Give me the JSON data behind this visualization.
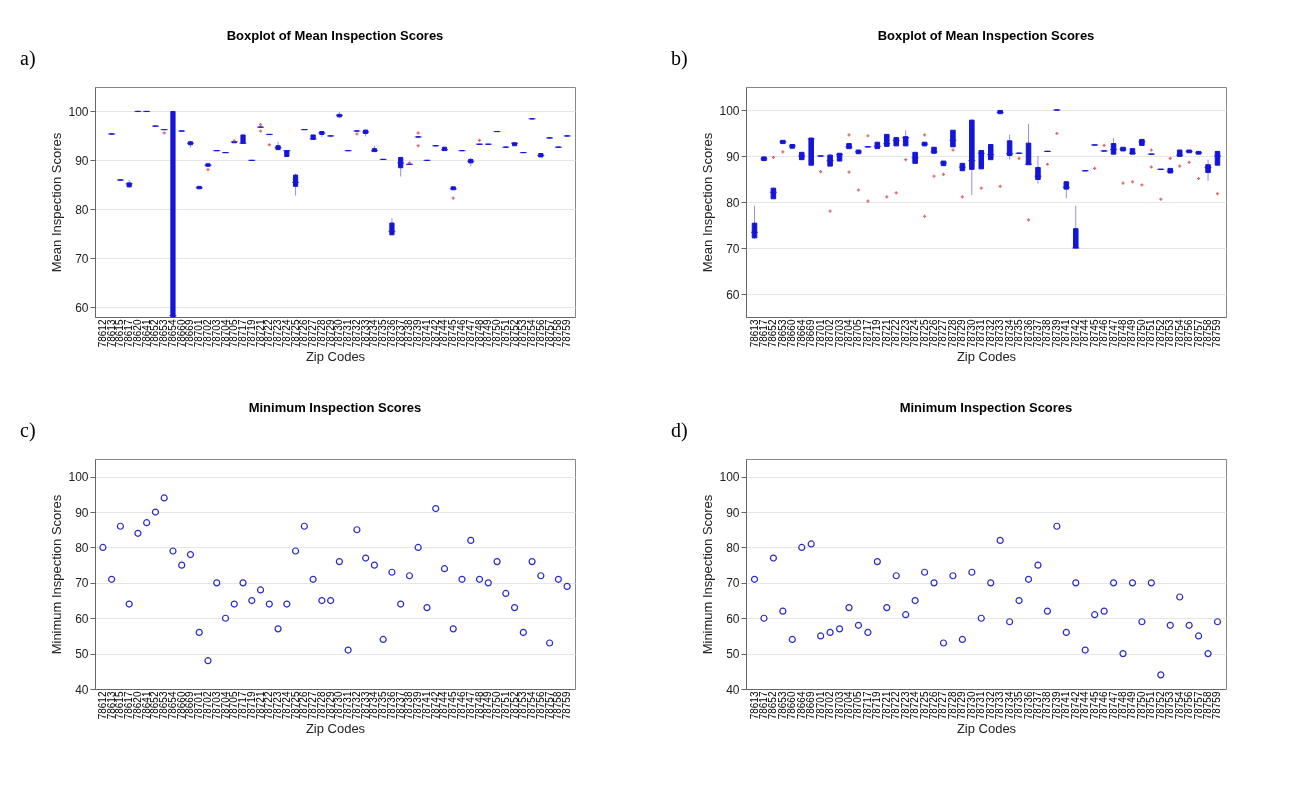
{
  "chart_data": [
    {
      "type": "box",
      "title": "Boxplot of Mean Inspection Scores",
      "xlabel": "Zip Codes",
      "ylabel": "Mean Inspection Scores",
      "annotations": [
        "a)"
      ],
      "grid": "y",
      "ylim": [
        58,
        105
      ],
      "yticks": [
        60,
        70,
        80,
        90,
        100
      ],
      "categories": [
        "78612",
        "78613",
        "78615",
        "78617",
        "78620",
        "78641",
        "78652",
        "78653",
        "78654",
        "78660",
        "78669",
        "78701",
        "78702",
        "78703",
        "78704",
        "78705",
        "78717",
        "78719",
        "78721",
        "78722",
        "78723",
        "78724",
        "78725",
        "78726",
        "78727",
        "78728",
        "78729",
        "78730",
        "78731",
        "78732",
        "78733",
        "78734",
        "78735",
        "78736",
        "78737",
        "78738",
        "78739",
        "78741",
        "78742",
        "78744",
        "78745",
        "78746",
        "78747",
        "78748",
        "78749",
        "78750",
        "78751",
        "78752",
        "78753",
        "78754",
        "78756",
        "78757",
        "78758",
        "78759"
      ],
      "series": [
        {
          "color": "#1515d8",
          "boxes": [
            null,
            {
              "low": 95.4,
              "q1": 95.4,
              "median": 95.4,
              "q3": 95.4,
              "high": 95.4
            },
            {
              "low": 86,
              "q1": 86,
              "median": 86,
              "q3": 86,
              "high": 86
            },
            {
              "low": 84.4,
              "q1": 84.6,
              "median": 85.2,
              "q3": 85.4,
              "high": 86
            },
            {
              "low": 100,
              "q1": 100,
              "median": 100,
              "q3": 100,
              "high": 100
            },
            {
              "low": 100,
              "q1": 100,
              "median": 100,
              "q3": 100,
              "high": 100
            },
            {
              "low": 97,
              "q1": 97,
              "median": 97,
              "q3": 97,
              "high": 97
            },
            {
              "low": 96.3,
              "q1": 96.3,
              "median": 96.3,
              "q3": 96.3,
              "high": 96.3,
              "outliers": [
                95.6
              ]
            },
            {
              "low": 58,
              "q1": 58,
              "median": 58.3,
              "q3": 100,
              "high": 100
            },
            {
              "low": 96,
              "q1": 96,
              "median": 96,
              "q3": 96,
              "high": 96
            },
            {
              "low": 92.6,
              "q1": 93.2,
              "median": 93.5,
              "q3": 93.8,
              "high": 94
            },
            {
              "low": 84.2,
              "q1": 84.2,
              "median": 84.4,
              "q3": 84.7,
              "high": 84.7
            },
            {
              "low": 88.8,
              "q1": 88.8,
              "median": 89,
              "q3": 89.3,
              "high": 89.5,
              "outliers": [
                88.1
              ]
            },
            {
              "low": 92,
              "q1": 92,
              "median": 92,
              "q3": 92,
              "high": 92
            },
            {
              "low": 91.6,
              "q1": 91.6,
              "median": 91.6,
              "q3": 91.6,
              "high": 91.6
            },
            {
              "low": 93.6,
              "q1": 93.6,
              "median": 93.8,
              "q3": 93.8,
              "high": 93.8,
              "outliers": [
                94
              ]
            },
            {
              "low": 93.5,
              "q1": 93.5,
              "median": 93.5,
              "q3": 95.2,
              "high": 95.2
            },
            {
              "low": 90,
              "q1": 90,
              "median": 90,
              "q3": 90,
              "high": 90
            },
            {
              "low": 96.8,
              "q1": 96.8,
              "median": 96.8,
              "q3": 96.8,
              "high": 96.8,
              "outliers": [
                97.3,
                96
              ]
            },
            {
              "low": 95.3,
              "q1": 95.3,
              "median": 95.3,
              "q3": 95.3,
              "high": 95.3,
              "outliers": [
                93.2
              ]
            },
            {
              "low": 92.2,
              "q1": 92.2,
              "median": 92.6,
              "q3": 93,
              "high": 93.8
            },
            {
              "low": 90.8,
              "q1": 90.8,
              "median": 92,
              "q3": 92,
              "high": 92
            },
            {
              "low": 82.8,
              "q1": 84.7,
              "median": 85.5,
              "q3": 87,
              "high": 87.3
            },
            {
              "low": 96.3,
              "q1": 96.3,
              "median": 96.3,
              "q3": 96.3,
              "high": 96.3
            },
            {
              "low": 94.3,
              "q1": 94.3,
              "median": 94.4,
              "q3": 95.2,
              "high": 95.2
            },
            {
              "low": 94.8,
              "q1": 95.3,
              "median": 95.6,
              "q3": 95.9,
              "high": 95.9
            },
            {
              "low": 95,
              "q1": 95,
              "median": 95,
              "q3": 95,
              "high": 95
            },
            {
              "low": 98.6,
              "q1": 98.9,
              "median": 99.2,
              "q3": 99.4,
              "high": 99.9
            },
            {
              "low": 92,
              "q1": 92,
              "median": 92,
              "q3": 92,
              "high": 92
            },
            {
              "low": 96,
              "q1": 96,
              "median": 96,
              "q3": 96,
              "high": 96,
              "outliers": [
                95.4
              ]
            },
            {
              "low": 94.9,
              "q1": 95.5,
              "median": 95.8,
              "q3": 96.2,
              "high": 96.2
            },
            {
              "low": 91.8,
              "q1": 91.8,
              "median": 92,
              "q3": 92.4,
              "high": 93
            },
            {
              "low": 90.2,
              "q1": 90.2,
              "median": 90.2,
              "q3": 90.2,
              "high": 90.2
            },
            {
              "low": 74.8,
              "q1": 74.8,
              "median": 75.5,
              "q3": 77.2,
              "high": 78.2
            },
            {
              "low": 86.7,
              "q1": 88.5,
              "median": 89.5,
              "q3": 90.6,
              "high": 90.6
            },
            {
              "low": 89.2,
              "q1": 89.2,
              "median": 89.2,
              "q3": 89.2,
              "high": 89.2,
              "outliers": [
                89.5
              ]
            },
            {
              "low": 94.8,
              "q1": 94.8,
              "median": 94.8,
              "q3": 94.8,
              "high": 94.8,
              "outliers": [
                95.6,
                93
              ]
            },
            {
              "low": 90,
              "q1": 90,
              "median": 90,
              "q3": 90,
              "high": 90
            },
            {
              "low": 93,
              "q1": 93,
              "median": 93,
              "q3": 93,
              "high": 93
            },
            {
              "low": 92,
              "q1": 92,
              "median": 92.2,
              "q3": 92.7,
              "high": 92.7
            },
            {
              "low": 84,
              "q1": 84,
              "median": 84.2,
              "q3": 84.6,
              "high": 84.6,
              "outliers": [
                82.3
              ]
            },
            {
              "low": 92,
              "q1": 92,
              "median": 92,
              "q3": 92,
              "high": 92
            },
            {
              "low": 88.8,
              "q1": 89.5,
              "median": 89.8,
              "q3": 90.2,
              "high": 90.6
            },
            {
              "low": 93.3,
              "q1": 93.3,
              "median": 93.3,
              "q3": 93.3,
              "high": 93.3,
              "outliers": [
                94.1
              ]
            },
            {
              "low": 93.3,
              "q1": 93.3,
              "median": 93.3,
              "q3": 93.3,
              "high": 93.3
            },
            {
              "low": 95.9,
              "q1": 95.9,
              "median": 95.9,
              "q3": 95.9,
              "high": 95.9
            },
            {
              "low": 92.7,
              "q1": 92.7,
              "median": 92.7,
              "q3": 92.7,
              "high": 92.7
            },
            {
              "low": 93,
              "q1": 93,
              "median": 93.5,
              "q3": 93.6,
              "high": 93.6
            },
            {
              "low": 91.6,
              "q1": 91.6,
              "median": 91.6,
              "q3": 91.6,
              "high": 91.6
            },
            {
              "low": 98.5,
              "q1": 98.5,
              "median": 98.5,
              "q3": 98.5,
              "high": 98.5
            },
            {
              "low": 90.7,
              "q1": 90.7,
              "median": 91,
              "q3": 91.4,
              "high": 91.4
            },
            {
              "low": 94.6,
              "q1": 94.6,
              "median": 94.6,
              "q3": 94.6,
              "high": 94.6
            },
            {
              "low": 92.7,
              "q1": 92.7,
              "median": 92.7,
              "q3": 92.7,
              "high": 92.7
            },
            {
              "low": 95,
              "q1": 95,
              "median": 95,
              "q3": 95,
              "high": 95
            }
          ]
        }
      ]
    },
    {
      "type": "box",
      "title": "Boxplot of Mean Inspection Scores",
      "xlabel": "Zip Codes",
      "ylabel": "Mean Inspection Scores",
      "annotations": [
        "b)"
      ],
      "grid": "y",
      "ylim": [
        55,
        105
      ],
      "yticks": [
        60,
        70,
        80,
        90,
        100
      ],
      "categories": [
        "78613",
        "78617",
        "78652",
        "78653",
        "78660",
        "78664",
        "78669",
        "78701",
        "78702",
        "78703",
        "78704",
        "78705",
        "78717",
        "78719",
        "78721",
        "78722",
        "78723",
        "78724",
        "78725",
        "78726",
        "78727",
        "78728",
        "78729",
        "78730",
        "78731",
        "78732",
        "78733",
        "78734",
        "78735",
        "78736",
        "78737",
        "78738",
        "78739",
        "78741",
        "78742",
        "78744",
        "78745",
        "78746",
        "78747",
        "78748",
        "78749",
        "78750",
        "78751",
        "78752",
        "78753",
        "78754",
        "78756",
        "78757",
        "78758",
        "78759"
      ],
      "series": [
        {
          "color": "#1515d8",
          "boxes": [
            {
              "low": 72,
              "q1": 72.2,
              "median": 73.4,
              "q3": 75.4,
              "high": 79.2
            },
            {
              "low": 89,
              "q1": 89,
              "median": 89.4,
              "q3": 89.8,
              "high": 89.8
            },
            {
              "low": 80.7,
              "q1": 80.7,
              "median": 82.1,
              "q3": 83,
              "high": 83.2,
              "outliers": [
                89.7
              ]
            },
            {
              "low": 92.7,
              "q1": 92.7,
              "median": 93.1,
              "q3": 93.4,
              "high": 93.4,
              "outliers": [
                90.9
              ]
            },
            {
              "low": 91.7,
              "q1": 91.7,
              "median": 92.2,
              "q3": 92.5,
              "high": 92.5
            },
            {
              "low": 89.2,
              "q1": 89.2,
              "median": 90,
              "q3": 90.8,
              "high": 90.8
            },
            {
              "low": 88,
              "q1": 88,
              "median": 93.7,
              "q3": 93.9,
              "high": 93.9
            },
            {
              "low": 90,
              "q1": 90,
              "median": 90,
              "q3": 90,
              "high": 90,
              "outliers": [
                86.6
              ]
            },
            {
              "low": 87.8,
              "q1": 87.8,
              "median": 89,
              "q3": 90.2,
              "high": 90.5,
              "outliers": [
                78
              ]
            },
            {
              "low": 88.9,
              "q1": 88.9,
              "median": 90.3,
              "q3": 90.6,
              "high": 90.6
            },
            {
              "low": 91.6,
              "q1": 91.6,
              "median": 92,
              "q3": 92.7,
              "high": 92.7,
              "outliers": [
                94.6,
                86.5
              ]
            },
            {
              "low": 90.5,
              "q1": 90.5,
              "median": 90.9,
              "q3": 91.3,
              "high": 91.3,
              "outliers": [
                82.6
              ]
            },
            {
              "low": 92,
              "q1": 92,
              "median": 92,
              "q3": 92,
              "high": 92,
              "outliers": [
                94.4,
                80.2
              ]
            },
            {
              "low": 91.6,
              "q1": 91.6,
              "median": 92.1,
              "q3": 93,
              "high": 93
            },
            {
              "low": 92.1,
              "q1": 92.1,
              "median": 92.7,
              "q3": 94.7,
              "high": 94.7,
              "outliers": [
                81.1
              ]
            },
            {
              "low": 92.2,
              "q1": 92.2,
              "median": 93.4,
              "q3": 94,
              "high": 94,
              "outliers": [
                82
              ]
            },
            {
              "low": 92.2,
              "q1": 92.2,
              "median": 94,
              "q3": 94.2,
              "high": 95.6,
              "outliers": [
                89.2
              ]
            },
            {
              "low": 88.4,
              "q1": 88.4,
              "median": 89.6,
              "q3": 90.8,
              "high": 90.8
            },
            {
              "low": 92.2,
              "q1": 92.2,
              "median": 92.6,
              "q3": 93,
              "high": 93,
              "outliers": [
                94.6,
                76.9
              ]
            },
            {
              "low": 90.6,
              "q1": 90.6,
              "median": 90.9,
              "q3": 91.9,
              "high": 91.9,
              "outliers": [
                85.6
              ]
            },
            {
              "low": 87.9,
              "q1": 87.9,
              "median": 88.5,
              "q3": 88.9,
              "high": 88.9,
              "outliers": [
                86
              ]
            },
            {
              "low": 92,
              "q1": 92,
              "median": 93.4,
              "q3": 95.6,
              "high": 95.6,
              "outliers": [
                91.3
              ]
            },
            {
              "low": 86.8,
              "q1": 86.8,
              "median": 87.6,
              "q3": 88.4,
              "high": 88.4,
              "outliers": [
                81.1
              ]
            },
            {
              "low": 81.5,
              "q1": 87.1,
              "median": 89,
              "q3": 97.8,
              "high": 97.8
            },
            {
              "low": 87.2,
              "q1": 87.2,
              "median": 90.6,
              "q3": 91.2,
              "high": 91.2,
              "outliers": [
                83
              ]
            },
            {
              "low": 89.2,
              "q1": 89.2,
              "median": 90.3,
              "q3": 92.5,
              "high": 92.5
            },
            {
              "low": 99.2,
              "q1": 99.2,
              "median": 99.5,
              "q3": 99.9,
              "high": 99.9,
              "outliers": [
                83.4
              ]
            },
            {
              "low": 89.2,
              "q1": 90.1,
              "median": 90.5,
              "q3": 93.3,
              "high": 94.6
            },
            {
              "low": 90.6,
              "q1": 90.6,
              "median": 90.6,
              "q3": 90.6,
              "high": 90.6,
              "outliers": [
                89.5
              ]
            },
            {
              "low": 88.1,
              "q1": 88.1,
              "median": 88.2,
              "q3": 92.8,
              "high": 97,
              "outliers": [
                76.1
              ]
            },
            {
              "low": 84,
              "q1": 84.9,
              "median": 85.6,
              "q3": 87.5,
              "high": 90
            },
            {
              "low": 91,
              "q1": 91,
              "median": 91,
              "q3": 91,
              "high": 91,
              "outliers": [
                88.2
              ]
            },
            {
              "low": 100,
              "q1": 100,
              "median": 100,
              "q3": 100,
              "high": 100,
              "outliers": [
                94.9
              ]
            },
            {
              "low": 80.8,
              "q1": 82.8,
              "median": 83.2,
              "q3": 84.4,
              "high": 84.4
            },
            {
              "low": 70,
              "q1": 70,
              "median": 70,
              "q3": 74.2,
              "high": 79.2
            },
            {
              "low": 86.8,
              "q1": 86.8,
              "median": 86.8,
              "q3": 86.8,
              "high": 86.8
            },
            {
              "low": 92.4,
              "q1": 92.4,
              "median": 92.4,
              "q3": 92.4,
              "high": 92.4,
              "outliers": [
                87.3
              ]
            },
            {
              "low": 91.1,
              "q1": 91.1,
              "median": 91.1,
              "q3": 91.1,
              "high": 91.1,
              "outliers": [
                92.3
              ]
            },
            {
              "low": 90.4,
              "q1": 90.4,
              "median": 91.4,
              "q3": 92.7,
              "high": 93.9
            },
            {
              "low": 91.1,
              "q1": 91.1,
              "median": 91.5,
              "q3": 91.9,
              "high": 91.9,
              "outliers": [
                84.1
              ]
            },
            {
              "low": 90.4,
              "q1": 90.4,
              "median": 90.6,
              "q3": 91.6,
              "high": 91.6,
              "outliers": [
                84.4
              ]
            },
            {
              "low": 92.3,
              "q1": 92.3,
              "median": 93.1,
              "q3": 93.6,
              "high": 93.6,
              "outliers": [
                83.7
              ]
            },
            {
              "low": 90.4,
              "q1": 90.4,
              "median": 90.4,
              "q3": 90.4,
              "high": 90.4,
              "outliers": [
                91.3,
                87.6
              ]
            },
            {
              "low": 87.1,
              "q1": 87.1,
              "median": 87.1,
              "q3": 87.1,
              "high": 87.1,
              "outliers": [
                80.6
              ]
            },
            {
              "low": 86.3,
              "q1": 86.3,
              "median": 86.7,
              "q3": 87.3,
              "high": 87.3,
              "outliers": [
                89.5
              ]
            },
            {
              "low": 89.9,
              "q1": 89.9,
              "median": 90.2,
              "q3": 91.3,
              "high": 91.3,
              "outliers": [
                87.8
              ]
            },
            {
              "low": 90.7,
              "q1": 90.7,
              "median": 91,
              "q3": 91.3,
              "high": 91.3,
              "outliers": [
                88.6
              ]
            },
            {
              "low": 90.4,
              "q1": 90.4,
              "median": 90.7,
              "q3": 91,
              "high": 91,
              "outliers": [
                85.1
              ]
            },
            {
              "low": 84.6,
              "q1": 86.4,
              "median": 87.5,
              "q3": 88.1,
              "high": 89.2
            },
            {
              "low": 88,
              "q1": 88,
              "median": 90,
              "q3": 91,
              "high": 91,
              "outliers": [
                81.8
              ]
            }
          ]
        }
      ]
    },
    {
      "type": "scatter",
      "title": "Minimum Inspection Scores",
      "xlabel": "Zip Codes",
      "ylabel": "Minimum Inspection Scores",
      "annotations": [
        "c)"
      ],
      "grid": "y",
      "marker": "circle",
      "ylim": [
        40,
        105
      ],
      "yticks": [
        40,
        50,
        60,
        70,
        80,
        90,
        100
      ],
      "categories": [
        "78612",
        "78613",
        "78615",
        "78617",
        "78620",
        "78641",
        "78652",
        "78653",
        "78654",
        "78660",
        "78669",
        "78701",
        "78702",
        "78703",
        "78704",
        "78705",
        "78717",
        "78719",
        "78721",
        "78722",
        "78723",
        "78724",
        "78725",
        "78726",
        "78727",
        "78728",
        "78729",
        "78730",
        "78731",
        "78732",
        "78733",
        "78734",
        "78735",
        "78736",
        "78737",
        "78738",
        "78739",
        "78741",
        "78742",
        "78744",
        "78745",
        "78746",
        "78747",
        "78748",
        "78749",
        "78750",
        "78751",
        "78752",
        "78753",
        "78754",
        "78756",
        "78757",
        "78758",
        "78759"
      ],
      "series": [
        {
          "color": "#2b2bc8",
          "values": [
            80,
            71,
            86,
            64,
            84,
            87,
            90,
            94,
            79,
            75,
            78,
            56,
            48,
            70,
            60,
            64,
            70,
            65,
            68,
            64,
            57,
            64,
            79,
            86,
            71,
            65,
            65,
            76,
            51,
            85,
            77,
            75,
            54,
            73,
            64,
            72,
            80,
            63,
            91,
            74,
            57,
            71,
            82,
            71,
            70,
            76,
            67,
            63,
            56,
            76,
            72,
            53,
            71,
            69
          ]
        }
      ]
    },
    {
      "type": "scatter",
      "title": "Minimum Inspection Scores",
      "xlabel": "Zip Codes",
      "ylabel": "Minimum Inspection Scores",
      "annotations": [
        "d)"
      ],
      "grid": "y",
      "marker": "circle",
      "ylim": [
        40,
        105
      ],
      "yticks": [
        40,
        50,
        60,
        70,
        80,
        90,
        100
      ],
      "categories": [
        "78613",
        "78617",
        "78652",
        "78653",
        "78660",
        "78664",
        "78669",
        "78701",
        "78702",
        "78703",
        "78704",
        "78705",
        "78717",
        "78719",
        "78721",
        "78722",
        "78723",
        "78724",
        "78725",
        "78726",
        "78727",
        "78728",
        "78729",
        "78730",
        "78731",
        "78732",
        "78733",
        "78734",
        "78735",
        "78736",
        "78737",
        "78738",
        "78739",
        "78741",
        "78742",
        "78744",
        "78745",
        "78746",
        "78747",
        "78748",
        "78749",
        "78750",
        "78751",
        "78752",
        "78753",
        "78754",
        "78756",
        "78757",
        "78758",
        "78759"
      ],
      "series": [
        {
          "color": "#2b2bc8",
          "values": [
            71,
            60,
            77,
            62,
            54,
            80,
            81,
            55,
            56,
            57,
            63,
            58,
            56,
            76,
            63,
            72,
            61,
            65,
            73,
            70,
            53,
            72,
            54,
            73,
            60,
            70,
            82,
            59,
            65,
            71,
            75,
            62,
            86,
            56,
            70,
            51,
            61,
            62,
            70,
            50,
            70,
            59,
            70,
            44,
            58,
            66,
            58,
            55,
            50,
            59
          ]
        }
      ]
    }
  ]
}
